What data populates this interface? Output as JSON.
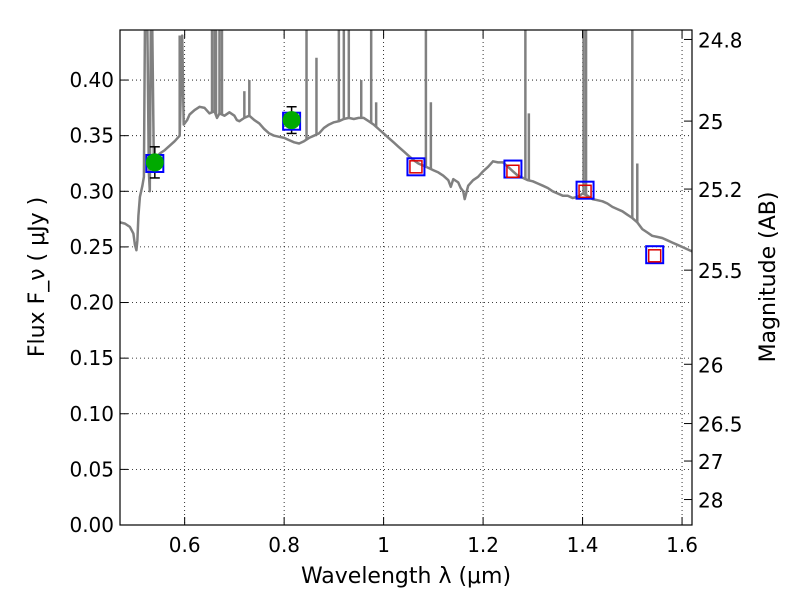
{
  "chart_data": {
    "type": "scatter",
    "xlabel": "Wavelength  λ (μm)",
    "ylabel": "Flux  F_ν  ( μJy )",
    "ylabel_right": "Magnitude (AB)",
    "xlim": [
      0.47,
      1.62
    ],
    "ylim": [
      0.0,
      0.445
    ],
    "grid": true,
    "x_ticks": [
      {
        "value": 0.6,
        "label": "0.6"
      },
      {
        "value": 0.8,
        "label": "0.8"
      },
      {
        "value": 1.0,
        "label": "1"
      },
      {
        "value": 1.2,
        "label": "1.2"
      },
      {
        "value": 1.4,
        "label": "1.4"
      },
      {
        "value": 1.6,
        "label": "1.6"
      }
    ],
    "y_ticks": [
      {
        "value": 0.0,
        "label": "0.00"
      },
      {
        "value": 0.05,
        "label": "0.05"
      },
      {
        "value": 0.1,
        "label": "0.10"
      },
      {
        "value": 0.15,
        "label": "0.15"
      },
      {
        "value": 0.2,
        "label": "0.20"
      },
      {
        "value": 0.25,
        "label": "0.25"
      },
      {
        "value": 0.3,
        "label": "0.30"
      },
      {
        "value": 0.35,
        "label": "0.35"
      },
      {
        "value": 0.4,
        "label": "0.40"
      }
    ],
    "right_ticks": [
      {
        "flux": 0.4365,
        "label": "24.8"
      },
      {
        "flux": 0.3631,
        "label": "25"
      },
      {
        "flux": 0.302,
        "label": "25.2"
      },
      {
        "flux": 0.2291,
        "label": "25.5"
      },
      {
        "flux": 0.1445,
        "label": "26"
      },
      {
        "flux": 0.0912,
        "label": "26.5"
      },
      {
        "flux": 0.0575,
        "label": "27"
      },
      {
        "flux": 0.0229,
        "label": "28"
      }
    ],
    "observed_points": [
      {
        "x": 0.54,
        "y": 0.326,
        "err": 0.014
      },
      {
        "x": 0.815,
        "y": 0.364,
        "err": 0.012
      }
    ],
    "model_squares": [
      {
        "x": 0.54,
        "y": 0.325
      },
      {
        "x": 0.815,
        "y": 0.363
      },
      {
        "x": 1.065,
        "y": 0.322
      },
      {
        "x": 1.26,
        "y": 0.32
      },
      {
        "x": 1.405,
        "y": 0.301
      },
      {
        "x": 1.545,
        "y": 0.243
      }
    ],
    "predicted_squares": [
      {
        "x": 1.065,
        "y": 0.322
      },
      {
        "x": 1.26,
        "y": 0.318
      },
      {
        "x": 1.405,
        "y": 0.3
      },
      {
        "x": 1.545,
        "y": 0.242
      }
    ],
    "spectrum": [
      [
        0.47,
        0.272
      ],
      [
        0.48,
        0.271
      ],
      [
        0.49,
        0.268
      ],
      [
        0.497,
        0.262
      ],
      [
        0.5,
        0.252
      ],
      [
        0.503,
        0.247
      ],
      [
        0.505,
        0.256
      ],
      [
        0.507,
        0.278
      ],
      [
        0.51,
        0.295
      ],
      [
        0.515,
        0.305
      ],
      [
        0.518,
        0.313
      ],
      [
        0.52,
        0.445
      ],
      [
        0.525,
        0.445
      ],
      [
        0.528,
        0.318
      ],
      [
        0.53,
        0.3
      ],
      [
        0.532,
        0.445
      ],
      [
        0.535,
        0.445
      ],
      [
        0.538,
        0.328
      ],
      [
        0.55,
        0.334
      ],
      [
        0.56,
        0.337
      ],
      [
        0.57,
        0.341
      ],
      [
        0.58,
        0.345
      ],
      [
        0.59,
        0.35
      ],
      [
        0.595,
        0.44
      ],
      [
        0.598,
        0.36
      ],
      [
        0.605,
        0.364
      ],
      [
        0.61,
        0.369
      ],
      [
        0.62,
        0.373
      ],
      [
        0.63,
        0.376
      ],
      [
        0.64,
        0.375
      ],
      [
        0.65,
        0.37
      ],
      [
        0.66,
        0.372
      ],
      [
        0.665,
        0.366
      ],
      [
        0.67,
        0.37
      ],
      [
        0.68,
        0.368
      ],
      [
        0.69,
        0.371
      ],
      [
        0.7,
        0.368
      ],
      [
        0.705,
        0.364
      ],
      [
        0.71,
        0.363
      ],
      [
        0.72,
        0.366
      ],
      [
        0.73,
        0.368
      ],
      [
        0.74,
        0.364
      ],
      [
        0.75,
        0.361
      ],
      [
        0.76,
        0.356
      ],
      [
        0.77,
        0.352
      ],
      [
        0.78,
        0.35
      ],
      [
        0.79,
        0.349
      ],
      [
        0.8,
        0.348
      ],
      [
        0.81,
        0.346
      ],
      [
        0.82,
        0.344
      ],
      [
        0.83,
        0.343
      ],
      [
        0.84,
        0.345
      ],
      [
        0.85,
        0.348
      ],
      [
        0.86,
        0.35
      ],
      [
        0.87,
        0.352
      ],
      [
        0.88,
        0.357
      ],
      [
        0.89,
        0.36
      ],
      [
        0.9,
        0.362
      ],
      [
        0.91,
        0.363
      ],
      [
        0.92,
        0.365
      ],
      [
        0.93,
        0.366
      ],
      [
        0.94,
        0.365
      ],
      [
        0.95,
        0.366
      ],
      [
        0.96,
        0.366
      ],
      [
        0.97,
        0.363
      ],
      [
        0.98,
        0.36
      ],
      [
        0.99,
        0.356
      ],
      [
        1.0,
        0.352
      ],
      [
        1.01,
        0.348
      ],
      [
        1.02,
        0.344
      ],
      [
        1.03,
        0.34
      ],
      [
        1.04,
        0.336
      ],
      [
        1.05,
        0.332
      ],
      [
        1.06,
        0.328
      ],
      [
        1.07,
        0.325
      ],
      [
        1.08,
        0.323
      ],
      [
        1.09,
        0.321
      ],
      [
        1.1,
        0.319
      ],
      [
        1.11,
        0.317
      ],
      [
        1.12,
        0.314
      ],
      [
        1.13,
        0.31
      ],
      [
        1.135,
        0.304
      ],
      [
        1.14,
        0.311
      ],
      [
        1.15,
        0.308
      ],
      [
        1.155,
        0.303
      ],
      [
        1.16,
        0.3
      ],
      [
        1.163,
        0.293
      ],
      [
        1.17,
        0.305
      ],
      [
        1.18,
        0.31
      ],
      [
        1.19,
        0.313
      ],
      [
        1.2,
        0.318
      ],
      [
        1.21,
        0.322
      ],
      [
        1.22,
        0.327
      ],
      [
        1.23,
        0.326
      ],
      [
        1.24,
        0.326
      ],
      [
        1.25,
        0.322
      ],
      [
        1.26,
        0.318
      ],
      [
        1.27,
        0.314
      ],
      [
        1.28,
        0.312
      ],
      [
        1.29,
        0.31
      ],
      [
        1.3,
        0.309
      ],
      [
        1.31,
        0.307
      ],
      [
        1.32,
        0.305
      ],
      [
        1.33,
        0.303
      ],
      [
        1.34,
        0.3
      ],
      [
        1.35,
        0.298
      ],
      [
        1.36,
        0.296
      ],
      [
        1.37,
        0.296
      ],
      [
        1.38,
        0.294
      ],
      [
        1.39,
        0.295
      ],
      [
        1.4,
        0.298
      ],
      [
        1.41,
        0.296
      ],
      [
        1.42,
        0.293
      ],
      [
        1.43,
        0.292
      ],
      [
        1.44,
        0.291
      ],
      [
        1.45,
        0.289
      ],
      [
        1.46,
        0.286
      ],
      [
        1.47,
        0.284
      ],
      [
        1.48,
        0.282
      ],
      [
        1.49,
        0.279
      ],
      [
        1.5,
        0.276
      ],
      [
        1.51,
        0.272
      ],
      [
        1.52,
        0.266
      ],
      [
        1.53,
        0.263
      ],
      [
        1.54,
        0.26
      ],
      [
        1.55,
        0.259
      ],
      [
        1.56,
        0.258
      ],
      [
        1.57,
        0.256
      ],
      [
        1.58,
        0.254
      ],
      [
        1.59,
        0.252
      ],
      [
        1.6,
        0.25
      ],
      [
        1.61,
        0.248
      ],
      [
        1.62,
        0.246
      ]
    ],
    "emission_lines": [
      {
        "x": 0.59,
        "top": 0.44
      },
      {
        "x": 0.655,
        "top": 0.445
      },
      {
        "x": 0.66,
        "top": 0.445
      },
      {
        "x": 0.663,
        "top": 0.445
      },
      {
        "x": 0.67,
        "top": 0.445
      },
      {
        "x": 0.675,
        "top": 0.445
      },
      {
        "x": 0.72,
        "top": 0.39
      },
      {
        "x": 0.73,
        "top": 0.4
      },
      {
        "x": 0.845,
        "top": 0.445
      },
      {
        "x": 0.865,
        "top": 0.42
      },
      {
        "x": 0.91,
        "top": 0.445
      },
      {
        "x": 0.92,
        "top": 0.445
      },
      {
        "x": 0.93,
        "top": 0.445
      },
      {
        "x": 0.955,
        "top": 0.4
      },
      {
        "x": 0.975,
        "top": 0.445
      },
      {
        "x": 0.985,
        "top": 0.38
      },
      {
        "x": 1.085,
        "top": 0.445
      },
      {
        "x": 1.095,
        "top": 0.38
      },
      {
        "x": 1.285,
        "top": 0.445
      },
      {
        "x": 1.292,
        "top": 0.37
      },
      {
        "x": 1.402,
        "top": 0.445
      },
      {
        "x": 1.407,
        "top": 0.445
      },
      {
        "x": 1.5,
        "top": 0.445
      },
      {
        "x": 1.51,
        "top": 0.325
      }
    ],
    "colors": {
      "spectrum": "#808080",
      "observed_fill": "#00aa00",
      "model_square": "#0000ff",
      "predicted_square": "#dd0000",
      "grid": "#000000"
    }
  }
}
